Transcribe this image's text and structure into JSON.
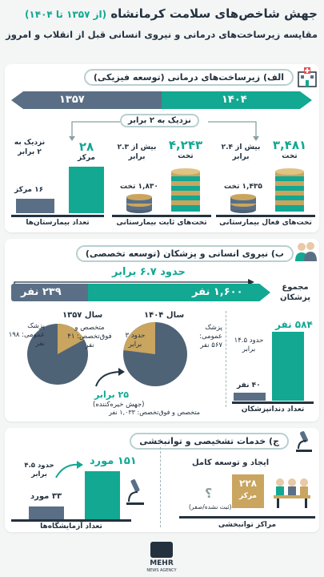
{
  "header": {
    "title": "جهش شاخص‌های سلامت کرمانشاه",
    "title_years": "(از ۱۳۵۷ تا ۱۴۰۴)",
    "subtitle": "مقایسه زیرساخت‌های درمانی و نیروی انسانی قبل از انقلاب و امروز"
  },
  "section_a": {
    "heading": "الف) زیرساخت‌های درمانی (توسعه فیزیکی)",
    "year_old": "۱۳۵۷",
    "year_new": "۱۴۰۴",
    "near_double": "نزدیک به ۲ برابر",
    "hospitals": {
      "old_value": "۱۶ مرکز",
      "new_value": "۲۸",
      "new_unit": "مرکز",
      "note": "نزدیک به ۲ برابر",
      "label": "تعداد بیمارستان‌ها"
    },
    "fixed_beds": {
      "old_value": "۱,۸۳۰ تخت",
      "new_value": "۴,۲۴۳",
      "new_unit": "تخت",
      "note": "بیش از ۲.۳ برابر",
      "label": "تخت‌های ثابت بیمارستانی"
    },
    "active_beds": {
      "old_value": "۱,۴۳۵ تخت",
      "new_value": "۳,۴۸۱",
      "new_unit": "تخت",
      "note": "بیش از ۲.۴ برابر",
      "label": "تخت‌های فعال بیمارستانی"
    }
  },
  "section_b": {
    "heading": "ب) نیروی انسانی و پزشکان (توسعه تخصصی)",
    "about_times": "حدود ۶.۷ برابر",
    "doctors_old": "۲۳۹ نفر",
    "doctors_new": "۱,۶۰۰ نفر",
    "doctors_total_label": "مجموع پزشکان",
    "year_old_label": "سال ۱۳۵۷",
    "year_new_label": "سال ۱۴۰۴",
    "old_gp": "پزشک عمومی: ۱۹۸ نفر",
    "old_spec": "متخصص و فوق‌تخصص: ۴۱ نفر",
    "new_gp": "پزشک عمومی: ۵۶۷ نفر",
    "new_spec": "متخصص و فوق‌تخصص: ۱,۰۳۳ نفر",
    "new_ratio": "حدود ۳ برابر",
    "spec_growth": "۲۵ برابر",
    "spec_growth_note": "(جهش خیره‌کننده)",
    "dentists_old": "۴۰ نفر",
    "dentists_new": "۵۸۴ نفر",
    "dentists_note": "حدود ۱۴.۵ برابر",
    "dentists_label": "تعداد دندانپزشکان"
  },
  "section_c": {
    "heading": "ج) خدمات تشخیصی و توانبخشی",
    "labs_old": "۳۳ مورد",
    "labs_new": "۱۵۱ مورد",
    "labs_note": "حدود ۴.۵ برابر",
    "labs_label": "تعداد آزمایشگاه‌ها",
    "rehab_title": "ایجاد و توسعه کامل",
    "rehab_value": "۲۲۸",
    "rehab_unit": "مرکز",
    "rehab_zero": "(ثبت نشده/صفر)",
    "rehab_question": "؟",
    "rehab_label": "مراکز توانبخشی"
  },
  "footer": {
    "brand": "MEHR",
    "brand_sub": "NEWS AGENCY"
  },
  "colors": {
    "teal": "#12a892",
    "slate": "#5a6f86",
    "dark": "#24323f",
    "gold": "#c9a560",
    "pie_slate": "#4f6377"
  }
}
